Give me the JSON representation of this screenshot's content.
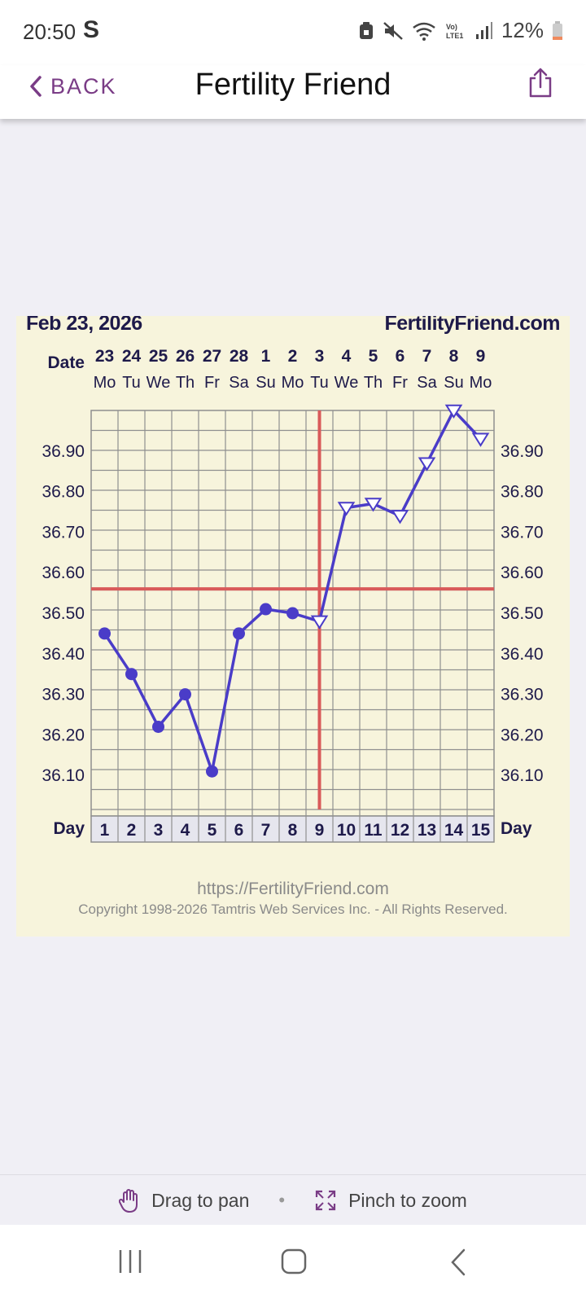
{
  "status_bar": {
    "time": "20:50",
    "carrier_glyph": "S",
    "battery_percent": "12%",
    "icons": [
      "lock-battery-icon",
      "mute-icon",
      "wifi-icon",
      "volte-icon",
      "signal-icon",
      "battery-icon"
    ],
    "volte_text": "Vo) LTE1"
  },
  "header": {
    "back_label": "BACK",
    "title": "Fertility Friend",
    "share_icon": "share-icon"
  },
  "chart_data": {
    "type": "line",
    "date_text": "Feb 23, 2026",
    "site_text": "FertilityFriend.com",
    "date_row_label": "Date",
    "day_row_label": "Day",
    "dates": [
      "23",
      "24",
      "25",
      "26",
      "27",
      "28",
      "1",
      "2",
      "3",
      "4",
      "5",
      "6",
      "7",
      "8",
      "9"
    ],
    "weekdays": [
      "Mo",
      "Tu",
      "We",
      "Th",
      "Fr",
      "Sa",
      "Su",
      "Mo",
      "Tu",
      "We",
      "Th",
      "Fr",
      "Sa",
      "Su",
      "Mo"
    ],
    "days": [
      1,
      2,
      3,
      4,
      5,
      6,
      7,
      8,
      9,
      10,
      11,
      12,
      13,
      14,
      15
    ],
    "y_ticks": [
      "36.90",
      "36.80",
      "36.70",
      "36.60",
      "36.50",
      "36.40",
      "36.30",
      "36.20",
      "36.10"
    ],
    "ylim": [
      36.0,
      37.0
    ],
    "temperatures": [
      36.45,
      36.35,
      36.22,
      36.3,
      36.11,
      36.45,
      36.51,
      36.5,
      36.48,
      36.76,
      36.77,
      36.74,
      36.87,
      37.0,
      36.93
    ],
    "markers": [
      "dot",
      "dot",
      "dot",
      "dot",
      "dot",
      "dot",
      "dot",
      "dot",
      "triangle",
      "triangle",
      "triangle",
      "triangle",
      "triangle",
      "triangle",
      "triangle"
    ],
    "coverline": 36.56,
    "ovulation_day": 9,
    "line_color": "#4a3cc8",
    "marker_fill": "#4a3cc8",
    "guide_color": "#d95a5a",
    "grid_color": "#8f8f8f",
    "background": "#f7f4dc",
    "footer_url": "https://FertilityFriend.com",
    "footer_copyright": "Copyright 1998-2026 Tamtris Web Services Inc. - All Rights Reserved."
  },
  "gestures": {
    "drag_label": "Drag to pan",
    "pinch_label": "Pinch to zoom",
    "separator": "•"
  },
  "nav_bar": {
    "recents": "recents-icon",
    "home": "home-icon",
    "back": "back-icon"
  }
}
